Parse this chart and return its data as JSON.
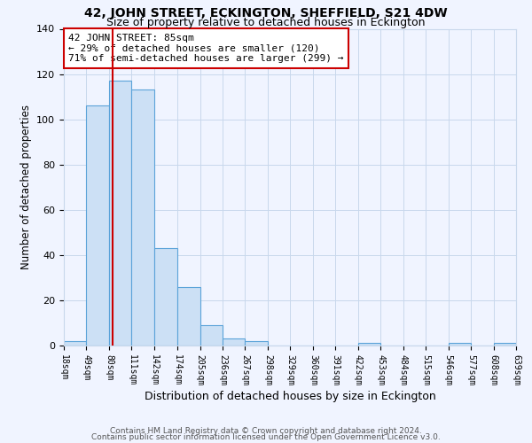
{
  "title": "42, JOHN STREET, ECKINGTON, SHEFFIELD, S21 4DW",
  "subtitle": "Size of property relative to detached houses in Eckington",
  "xlabel": "Distribution of detached houses by size in Eckington",
  "ylabel": "Number of detached properties",
  "bin_edges": [
    18,
    49,
    80,
    111,
    142,
    174,
    205,
    236,
    267,
    298,
    329,
    360,
    391,
    422,
    453,
    484,
    515,
    546,
    577,
    608,
    639
  ],
  "bin_counts": [
    2,
    106,
    117,
    113,
    43,
    26,
    9,
    3,
    2,
    0,
    0,
    0,
    0,
    1,
    0,
    0,
    0,
    1,
    0,
    1
  ],
  "bar_facecolor": "#cce0f5",
  "bar_edgecolor": "#5ba3d9",
  "vline_x": 85,
  "vline_color": "#cc0000",
  "annotation_text": "42 JOHN STREET: 85sqm\n← 29% of detached houses are smaller (120)\n71% of semi-detached houses are larger (299) →",
  "annotation_box_edgecolor": "#cc0000",
  "annotation_box_facecolor": "white",
  "ylim": [
    0,
    140
  ],
  "yticks": [
    0,
    20,
    40,
    60,
    80,
    100,
    120,
    140
  ],
  "tick_labels": [
    "18sqm",
    "49sqm",
    "80sqm",
    "111sqm",
    "142sqm",
    "174sqm",
    "205sqm",
    "236sqm",
    "267sqm",
    "298sqm",
    "329sqm",
    "360sqm",
    "391sqm",
    "422sqm",
    "453sqm",
    "484sqm",
    "515sqm",
    "546sqm",
    "577sqm",
    "608sqm",
    "639sqm"
  ],
  "footer1": "Contains HM Land Registry data © Crown copyright and database right 2024.",
  "footer2": "Contains public sector information licensed under the Open Government Licence v3.0.",
  "background_color": "#f0f4ff",
  "grid_color": "#c8d8ec",
  "title_fontsize": 10,
  "subtitle_fontsize": 9,
  "footer_fontsize": 6.5
}
